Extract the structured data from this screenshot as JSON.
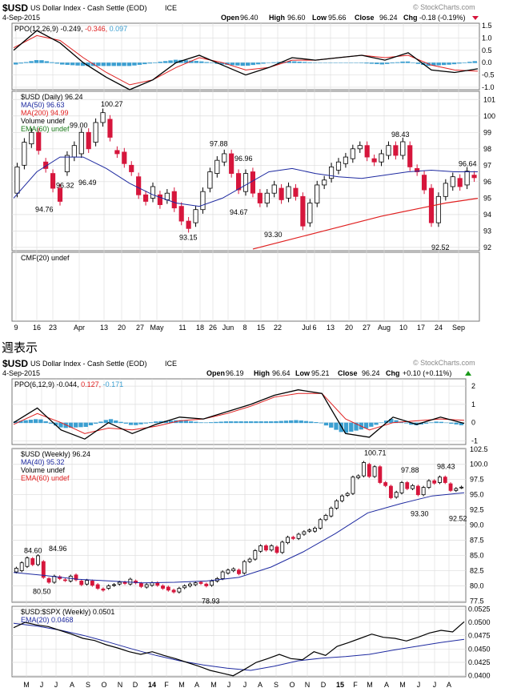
{
  "daily": {
    "header": {
      "symbol": "$USD",
      "name": "US Dollar Index - Cash Settle (EOD)",
      "exchange": "ICE",
      "date": "4-Sep-2015",
      "watermark": "© StockCharts.com",
      "quote": {
        "open_label": "Open",
        "open": "96.40",
        "high_label": "High",
        "high": "96.60",
        "low_label": "Low",
        "low": "95.66",
        "close_label": "Close",
        "close": "96.24",
        "chg_label": "Chg",
        "chg": "-0.18 (-0.19%)"
      }
    },
    "ppo_legend": {
      "label": "PPO(12,26,9)",
      "v1": "-0.249,",
      "v2": "-0.346,",
      "v3": "0.097"
    },
    "price_legend": [
      "$USD (Daily) 96.24",
      "MA(50) 96.63",
      "MA(200) 94.99",
      "Volume undef",
      "EMA(60) undef"
    ],
    "cmf_legend": "CMF(20) undef",
    "x_ticks": [
      "9",
      "16",
      "23",
      "Apr",
      "13",
      "20",
      "27",
      "May",
      "11",
      "18",
      "26",
      "Jun",
      "8",
      "15",
      "22",
      "Jul",
      "6",
      "13",
      "20",
      "27",
      "Aug",
      "10",
      "17",
      "24",
      "Sep"
    ],
    "ppo_ticks": [
      "1.5",
      "1.0",
      "0.5",
      "0.0",
      "-0.5",
      "-1.0"
    ],
    "price_ticks": [
      "101",
      "100",
      "99",
      "98",
      "97",
      "96",
      "95",
      "94",
      "93",
      "92"
    ],
    "annotations": [
      "100.27",
      "99.00",
      "96.32",
      "96.49",
      "94.76",
      "97.88",
      "96.96",
      "94.67",
      "93.15",
      "93.30",
      "98.43",
      "96.64",
      "92.52"
    ]
  },
  "caption": "週表示",
  "weekly": {
    "header": {
      "symbol": "$USD",
      "name": "US Dollar Index - Cash Settle (EOD)",
      "exchange": "ICE",
      "date": "4-Sep-2015",
      "watermark": "© StockCharts.com",
      "quote": {
        "open_label": "Open",
        "open": "96.19",
        "high_label": "High",
        "high": "96.64",
        "low_label": "Low",
        "low": "95.21",
        "close_label": "Close",
        "close": "96.24",
        "chg_label": "Chg",
        "chg": "+0.10 (+0.11%)"
      }
    },
    "ppo_legend": {
      "label": "PPO(6,12,9)",
      "v1": "-0.044,",
      "v2": "0.127,",
      "v3": "-0.171"
    },
    "price_legend": [
      "$USD (Weekly) 96.24",
      "MA(40) 95.32",
      "Volume undef",
      "EMA(60) undef"
    ],
    "ratio_legend": [
      "$USD:$SPX (Weekly) 0.0501",
      "EMA(20) 0.0468"
    ],
    "x_ticks": [
      "M",
      "J",
      "J",
      "A",
      "S",
      "O",
      "N",
      "D",
      "14",
      "F",
      "M",
      "A",
      "M",
      "J",
      "J",
      "A",
      "S",
      "O",
      "N",
      "D",
      "15",
      "F",
      "M",
      "A",
      "M",
      "J",
      "J",
      "A"
    ],
    "ppo_ticks": [
      "2",
      "1",
      "0",
      "-1"
    ],
    "price_ticks": [
      "102.5",
      "100.0",
      "97.5",
      "95.0",
      "92.5",
      "90.0",
      "87.5",
      "85.0",
      "82.5",
      "80.0",
      "77.5"
    ],
    "ratio_ticks": [
      "0.0525",
      "0.0500",
      "0.0475",
      "0.0450",
      "0.0425",
      "0.0400"
    ],
    "annotations": [
      "84.60",
      "84.96",
      "80.50",
      "78.93",
      "100.71",
      "97.88",
      "98.43",
      "93.30",
      "92.52"
    ]
  },
  "colors": {
    "up": "#ffffff",
    "down": "#d6163c",
    "ma50": "#1e2aa0",
    "ma200": "#e02020",
    "ppo_hist": "#3b9fd1",
    "grid": "#dcdcdc",
    "frame": "#555555"
  },
  "chart_data": [
    {
      "type": "candlestick",
      "title": "$USD (Daily) 96.24",
      "ylim": [
        91.8,
        101.5
      ],
      "series": [
        {
          "name": "$USD (Daily) 96.24",
          "type": "candlestick",
          "values": [
            [
              95.3,
              96.9
            ],
            [
              97.0,
              98.4
            ],
            [
              98.3,
              99.0
            ],
            [
              99.0,
              97.9
            ],
            [
              97.2,
              96.8
            ],
            [
              96.5,
              95.6
            ],
            [
              95.6,
              94.8
            ],
            [
              96.6,
              97.6
            ],
            [
              97.5,
              98.2
            ],
            [
              97.7,
              99.0
            ],
            [
              99.0,
              98.0
            ],
            [
              98.4,
              99.6
            ],
            [
              99.6,
              100.2
            ],
            [
              99.8,
              98.7
            ],
            [
              97.9,
              97.7
            ],
            [
              97.8,
              97.1
            ],
            [
              97.0,
              96.6
            ],
            [
              96.3,
              95.2
            ],
            [
              95.2,
              94.8
            ],
            [
              95.0,
              95.7
            ],
            [
              95.2,
              94.6
            ],
            [
              94.9,
              95.3
            ],
            [
              95.4,
              94.4
            ],
            [
              94.5,
              93.6
            ],
            [
              93.6,
              93.15
            ],
            [
              93.5,
              94.3
            ],
            [
              94.3,
              95.4
            ],
            [
              95.6,
              96.6
            ],
            [
              96.5,
              97.3
            ],
            [
              97.2,
              97.7
            ],
            [
              97.7,
              96.5
            ],
            [
              96.5,
              95.5
            ],
            [
              95.4,
              96.5
            ],
            [
              96.6,
              95.3
            ],
            [
              95.3,
              94.7
            ],
            [
              94.7,
              95.3
            ],
            [
              95.3,
              95.8
            ],
            [
              95.6,
              94.9
            ],
            [
              95.0,
              95.7
            ],
            [
              95.6,
              95.1
            ],
            [
              95.1,
              93.3
            ],
            [
              93.5,
              94.7
            ],
            [
              94.7,
              95.8
            ],
            [
              95.8,
              96.1
            ],
            [
              96.2,
              96.9
            ],
            [
              96.7,
              97.2
            ],
            [
              97.1,
              97.5
            ],
            [
              97.4,
              98.0
            ],
            [
              98.0,
              98.2
            ],
            [
              98.2,
              97.5
            ],
            [
              97.4,
              97.2
            ],
            [
              97.2,
              97.7
            ],
            [
              97.6,
              98.2
            ],
            [
              98.2,
              97.6
            ],
            [
              97.6,
              98.43
            ],
            [
              98.2,
              96.9
            ],
            [
              96.8,
              96.6
            ],
            [
              96.4,
              95.5
            ],
            [
              95.6,
              93.5
            ],
            [
              93.5,
              95.1
            ],
            [
              95.1,
              95.9
            ],
            [
              95.7,
              96.3
            ],
            [
              96.2,
              95.7
            ],
            [
              95.8,
              96.64
            ],
            [
              96.4,
              96.24
            ]
          ]
        },
        {
          "name": "MA(50) 96.63",
          "type": "line",
          "values": [
            95.0,
            96.6,
            97.5,
            97.5,
            96.8,
            95.9,
            95.2,
            94.7,
            94.5,
            95.0,
            95.8,
            96.6,
            96.8,
            96.5,
            96.3,
            96.2,
            96.4,
            96.6,
            96.7,
            96.6,
            96.6
          ]
        },
        {
          "name": "MA(200) 94.99",
          "type": "line",
          "values": [
            91.9,
            92.4,
            92.9,
            93.4,
            93.9,
            94.3,
            94.7,
            94.99
          ]
        }
      ]
    },
    {
      "type": "line",
      "title": "PPO(12,26,9)",
      "ylim": [
        -1.1,
        1.6
      ],
      "series": [
        {
          "name": "PPO",
          "values": [
            0.5,
            1.3,
            0.8,
            0.0,
            -0.6,
            -1.1,
            -0.7,
            0.0,
            0.3,
            -0.1,
            -0.5,
            -0.2,
            0.2,
            0.1,
            0.2,
            0.3,
            0.1,
            0.4,
            -0.3,
            -0.4,
            -0.25
          ]
        },
        {
          "name": "Signal",
          "values": [
            0.6,
            1.1,
            0.9,
            0.2,
            -0.4,
            -0.9,
            -0.7,
            -0.2,
            0.2,
            0.0,
            -0.3,
            -0.2,
            0.1,
            0.1,
            0.2,
            0.3,
            0.2,
            0.3,
            -0.1,
            -0.3,
            -0.35
          ]
        }
      ]
    },
    {
      "type": "candlestick",
      "title": "$USD (Weekly) 96.24",
      "ylim": [
        77.3,
        102.6
      ],
      "series": [
        {
          "name": "$USD (Weekly) 96.24",
          "type": "candlestick",
          "values": [
            [
              82.3,
              82.9
            ],
            [
              82.5,
              83.8
            ],
            [
              83.2,
              84.6
            ],
            [
              84.5,
              83.5
            ],
            [
              83.5,
              84.96
            ],
            [
              84.0,
              81.4
            ],
            [
              81.2,
              80.6
            ],
            [
              80.6,
              81.6
            ],
            [
              81.5,
              81.2
            ],
            [
              81.0,
              80.9
            ],
            [
              80.8,
              81.6
            ],
            [
              81.8,
              81.0
            ],
            [
              80.8,
              80.2
            ],
            [
              80.3,
              80.9
            ],
            [
              80.8,
              80.1
            ],
            [
              80.2,
              79.6
            ],
            [
              79.5,
              79.3
            ],
            [
              79.6,
              80.0
            ],
            [
              80.1,
              80.2
            ],
            [
              80.3,
              80.6
            ],
            [
              80.6,
              80.4
            ],
            [
              80.3,
              81.1
            ],
            [
              80.8,
              80.5
            ],
            [
              80.4,
              79.9
            ],
            [
              79.8,
              80.2
            ],
            [
              80.1,
              80.5
            ],
            [
              80.5,
              80.1
            ],
            [
              80.0,
              79.6
            ],
            [
              79.8,
              79.3
            ],
            [
              79.3,
              79.0
            ],
            [
              79.0,
              79.6
            ],
            [
              79.7,
              80.0
            ],
            [
              80.0,
              80.3
            ],
            [
              80.2,
              80.5
            ],
            [
              80.6,
              80.4
            ],
            [
              80.3,
              80.0
            ],
            [
              80.1,
              80.8
            ],
            [
              80.8,
              81.2
            ],
            [
              81.2,
              82.3
            ],
            [
              82.1,
              82.6
            ],
            [
              82.5,
              82.8
            ],
            [
              82.6,
              82.0
            ],
            [
              82.1,
              84.0
            ],
            [
              84.0,
              84.4
            ],
            [
              84.4,
              85.8
            ],
            [
              85.7,
              86.6
            ],
            [
              86.6,
              85.9
            ],
            [
              85.9,
              86.6
            ],
            [
              86.4,
              85.5
            ],
            [
              85.5,
              87.2
            ],
            [
              87.1,
              88.0
            ],
            [
              88.0,
              87.8
            ],
            [
              87.8,
              88.5
            ],
            [
              88.5,
              88.9
            ],
            [
              89.0,
              89.2
            ],
            [
              89.0,
              89.5
            ],
            [
              89.5,
              90.9
            ],
            [
              90.9,
              91.6
            ],
            [
              91.5,
              92.8
            ],
            [
              92.8,
              94.0
            ],
            [
              94.0,
              94.8
            ],
            [
              94.9,
              95.2
            ],
            [
              95.2,
              97.9
            ],
            [
              97.8,
              98.1
            ],
            [
              98.1,
              100.3
            ],
            [
              100.0,
              98.0
            ],
            [
              98.0,
              99.6
            ],
            [
              99.6,
              97.0
            ],
            [
              97.0,
              96.5
            ],
            [
              96.4,
              94.5
            ],
            [
              94.6,
              95.4
            ],
            [
              95.3,
              97.0
            ],
            [
              97.0,
              96.0
            ],
            [
              96.0,
              96.5
            ],
            [
              96.4,
              95.0
            ],
            [
              95.0,
              96.2
            ],
            [
              96.2,
              97.3
            ],
            [
              97.3,
              96.9
            ],
            [
              97.0,
              97.9
            ],
            [
              97.9,
              97.0
            ],
            [
              96.8,
              95.7
            ],
            [
              95.7,
              96.0
            ],
            [
              96.2,
              96.24
            ]
          ]
        },
        {
          "name": "MA(40) 95.32",
          "type": "line",
          "values": [
            82.2,
            81.7,
            81.1,
            80.8,
            80.5,
            80.6,
            80.8,
            81.4,
            83.1,
            85.6,
            88.6,
            92.0,
            93.5,
            94.8,
            95.32
          ]
        }
      ]
    },
    {
      "type": "line",
      "title": "PPO(6,12,9)",
      "ylim": [
        -1.2,
        2.4
      ],
      "series": [
        {
          "name": "PPO",
          "values": [
            0.0,
            0.8,
            -0.4,
            -0.9,
            0.0,
            -0.6,
            -0.1,
            0.3,
            0.2,
            0.6,
            1.0,
            1.5,
            1.8,
            1.6,
            -0.6,
            -0.8,
            0.3,
            -0.1,
            0.3,
            -0.04
          ]
        },
        {
          "name": "Signal",
          "values": [
            -0.1,
            0.5,
            0.0,
            -0.6,
            -0.3,
            -0.4,
            -0.2,
            0.1,
            0.2,
            0.5,
            0.9,
            1.4,
            1.6,
            1.6,
            0.2,
            -0.4,
            0.0,
            0.1,
            0.2,
            0.13
          ]
        }
      ]
    },
    {
      "type": "line",
      "title": "$USD:$SPX (Weekly) 0.0501",
      "ylim": [
        0.0398,
        0.053
      ],
      "series": [
        {
          "name": "$USD:$SPX (Weekly) 0.0501",
          "values": [
            0.049,
            0.05,
            0.0495,
            0.0492,
            0.0485,
            0.0478,
            0.047,
            0.0466,
            0.0458,
            0.0452,
            0.0445,
            0.044,
            0.0445,
            0.0438,
            0.0432,
            0.0425,
            0.0418,
            0.041,
            0.0405,
            0.04,
            0.0412,
            0.0425,
            0.0432,
            0.044,
            0.0432,
            0.043,
            0.0445,
            0.0438,
            0.0455,
            0.0462,
            0.047,
            0.0478,
            0.0472,
            0.047,
            0.0465,
            0.0472,
            0.048,
            0.0485,
            0.0482,
            0.0501
          ]
        },
        {
          "name": "EMA(20) 0.0468",
          "values": [
            0.0498,
            0.0493,
            0.0485,
            0.0475,
            0.0463,
            0.045,
            0.0438,
            0.0428,
            0.042,
            0.0414,
            0.041,
            0.0418,
            0.0428,
            0.0433,
            0.0436,
            0.044,
            0.0448,
            0.0455,
            0.0462,
            0.0468
          ]
        }
      ]
    }
  ]
}
